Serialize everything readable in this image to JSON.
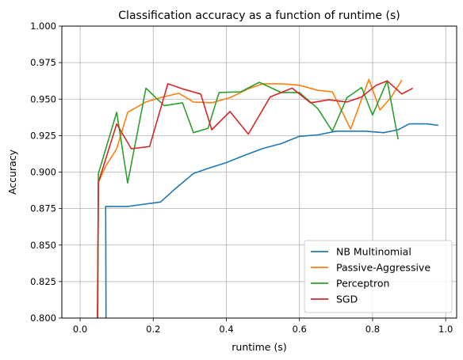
{
  "chart_data": {
    "type": "line",
    "title": "Classification accuracy as a function of runtime (s)",
    "xlabel": "runtime (s)",
    "ylabel": "Accuracy",
    "xlim": [
      -0.05,
      1.03
    ],
    "ylim": [
      0.8,
      1.0
    ],
    "xticks": [
      0.0,
      0.2,
      0.4,
      0.6,
      0.8,
      1.0
    ],
    "xtick_labels": [
      "0.0",
      "0.2",
      "0.4",
      "0.6",
      "0.8",
      "1.0"
    ],
    "yticks": [
      0.8,
      0.825,
      0.85,
      0.875,
      0.9,
      0.925,
      0.95,
      0.975,
      1.0
    ],
    "ytick_labels": [
      "0.800",
      "0.825",
      "0.850",
      "0.875",
      "0.900",
      "0.925",
      "0.950",
      "0.975",
      "1.000"
    ],
    "grid": true,
    "legend_position": "lower-right",
    "series": [
      {
        "name": "NB Multinomial",
        "color": "#1f77b4",
        "x": [
          0.07,
          0.071,
          0.07,
          0.13,
          0.16,
          0.19,
          0.22,
          0.26,
          0.31,
          0.35,
          0.4,
          0.45,
          0.5,
          0.55,
          0.6,
          0.65,
          0.7,
          0.75,
          0.78,
          0.83,
          0.87,
          0.9,
          0.95,
          0.98
        ],
        "y": [
          0.79,
          0.792,
          0.8765,
          0.8765,
          0.8775,
          0.8785,
          0.8795,
          0.8885,
          0.899,
          0.9025,
          0.9065,
          0.9115,
          0.9162,
          0.9195,
          0.9245,
          0.9255,
          0.928,
          0.928,
          0.928,
          0.927,
          0.929,
          0.933,
          0.933,
          0.932
        ]
      },
      {
        "name": "Passive-Aggressive",
        "color": "#ff7f0e",
        "x": [
          0.048,
          0.05,
          0.07,
          0.1,
          0.13,
          0.18,
          0.22,
          0.27,
          0.31,
          0.36,
          0.41,
          0.46,
          0.5,
          0.55,
          0.6,
          0.65,
          0.69,
          0.74,
          0.79,
          0.82,
          0.85,
          0.88
        ],
        "y": [
          0.79,
          0.893,
          0.904,
          0.916,
          0.941,
          0.948,
          0.951,
          0.954,
          0.948,
          0.9475,
          0.951,
          0.957,
          0.9605,
          0.9605,
          0.9595,
          0.956,
          0.955,
          0.9295,
          0.9635,
          0.9425,
          0.951,
          0.963
        ]
      },
      {
        "name": "Perceptron",
        "color": "#2ca02c",
        "x": [
          0.048,
          0.05,
          0.1,
          0.13,
          0.18,
          0.23,
          0.28,
          0.31,
          0.35,
          0.38,
          0.44,
          0.49,
          0.55,
          0.6,
          0.65,
          0.69,
          0.73,
          0.77,
          0.8,
          0.84,
          0.87
        ],
        "y": [
          0.79,
          0.899,
          0.941,
          0.8925,
          0.9575,
          0.9455,
          0.9475,
          0.927,
          0.93,
          0.9545,
          0.955,
          0.9615,
          0.9545,
          0.9545,
          0.9435,
          0.928,
          0.951,
          0.958,
          0.939,
          0.9625,
          0.9225
        ]
      },
      {
        "name": "SGD",
        "color": "#d62728",
        "x": [
          0.047,
          0.05,
          0.1,
          0.14,
          0.19,
          0.24,
          0.28,
          0.33,
          0.36,
          0.41,
          0.46,
          0.52,
          0.58,
          0.63,
          0.68,
          0.73,
          0.77,
          0.81,
          0.84,
          0.88,
          0.91
        ],
        "y": [
          0.79,
          0.893,
          0.933,
          0.916,
          0.9175,
          0.9605,
          0.957,
          0.9535,
          0.929,
          0.9415,
          0.926,
          0.9515,
          0.9575,
          0.9475,
          0.9495,
          0.948,
          0.9515,
          0.9595,
          0.9625,
          0.9535,
          0.9575
        ]
      }
    ]
  }
}
